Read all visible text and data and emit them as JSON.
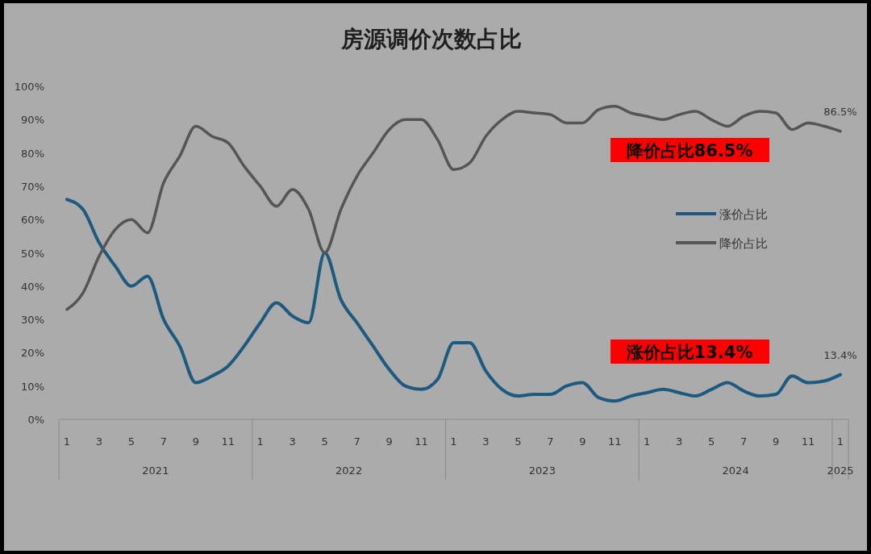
{
  "chart_data": {
    "type": "line",
    "title": "房源调价次数占比",
    "categories": [
      "1",
      null,
      "3",
      null,
      "5",
      null,
      "7",
      null,
      "9",
      null,
      "11",
      null,
      "1",
      null,
      "3",
      null,
      "5",
      null,
      "7",
      null,
      "9",
      null,
      "11",
      null,
      "1",
      null,
      "3",
      null,
      "5",
      null,
      "7",
      null,
      "9",
      null,
      "11",
      null,
      "1",
      null,
      "3",
      null,
      "5",
      null,
      "7",
      null,
      "9",
      null,
      "11",
      null,
      "1"
    ],
    "series": [
      {
        "name": "涨价占比",
        "color": "#1d5a80",
        "values": [
          66,
          63,
          53,
          46,
          40,
          43,
          30,
          22,
          11,
          13,
          16,
          22,
          29,
          35,
          31,
          29,
          50,
          36,
          29,
          22,
          15,
          10,
          9,
          12,
          23,
          23,
          14.5,
          9,
          7,
          7.5,
          7.5,
          10,
          11,
          6.5,
          5.5,
          7,
          8,
          9,
          8,
          7,
          9,
          11,
          8.5,
          7,
          7.5,
          13,
          11,
          11.5,
          13.4
        ],
        "value_labels": [
          null,
          null,
          null,
          null,
          null,
          null,
          null,
          null,
          null,
          null,
          null,
          null,
          null,
          null,
          null,
          null,
          null,
          null,
          null,
          null,
          null,
          null,
          null,
          null,
          null,
          null,
          null,
          null,
          null,
          null,
          null,
          null,
          null,
          null,
          null,
          null,
          null,
          null,
          null,
          null,
          null,
          null,
          null,
          null,
          null,
          null,
          null,
          null,
          "13.4%"
        ]
      },
      {
        "name": "降价占比",
        "color": "#555555",
        "values": [
          33,
          38,
          49,
          57,
          60,
          56,
          71,
          79,
          88,
          85,
          83,
          76,
          70,
          64,
          69,
          63,
          50,
          63,
          73,
          80,
          87,
          90,
          90,
          84,
          75,
          77,
          85,
          90,
          92.5,
          92,
          91.5,
          89,
          89,
          93,
          94,
          92,
          91,
          90,
          91.5,
          92.5,
          90,
          88,
          91,
          92.5,
          92,
          87,
          89,
          88,
          86.5
        ],
        "value_labels": [
          null,
          null,
          null,
          null,
          null,
          null,
          null,
          null,
          null,
          null,
          null,
          null,
          null,
          null,
          null,
          null,
          null,
          null,
          null,
          null,
          null,
          null,
          null,
          null,
          null,
          null,
          null,
          null,
          null,
          null,
          null,
          null,
          null,
          null,
          null,
          null,
          null,
          null,
          null,
          null,
          null,
          null,
          null,
          null,
          null,
          null,
          null,
          null,
          "86.5%"
        ]
      }
    ],
    "ylim": [
      0,
      100
    ],
    "yticks": [
      {
        "value": 0,
        "label": "0%"
      },
      {
        "value": 10,
        "label": "10%"
      },
      {
        "value": 20,
        "label": "20%"
      },
      {
        "value": 30,
        "label": "30%"
      },
      {
        "value": 40,
        "label": "40%"
      },
      {
        "value": 50,
        "label": "50%"
      },
      {
        "value": 60,
        "label": "60%"
      },
      {
        "value": 70,
        "label": "70%"
      },
      {
        "value": 80,
        "label": "80%"
      },
      {
        "value": 90,
        "label": "90%"
      },
      {
        "value": 100,
        "label": "100%"
      }
    ],
    "annotations": [
      "2021",
      "2022",
      "2023",
      "2024",
      "2025",
      "降价占比86.5%",
      "涨价占比13.4%"
    ],
    "legend": "right",
    "grid": false
  }
}
